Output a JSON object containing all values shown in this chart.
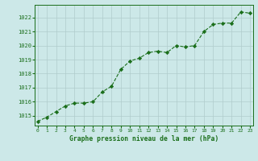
{
  "x": [
    0,
    1,
    2,
    3,
    4,
    5,
    6,
    7,
    8,
    9,
    10,
    11,
    12,
    13,
    14,
    15,
    16,
    17,
    18,
    19,
    20,
    21,
    22,
    23
  ],
  "y": [
    1014.6,
    1014.9,
    1015.3,
    1015.7,
    1015.9,
    1015.9,
    1016.0,
    1016.7,
    1017.1,
    1018.3,
    1018.9,
    1019.1,
    1019.5,
    1019.6,
    1019.5,
    1020.0,
    1019.9,
    1020.0,
    1021.0,
    1021.5,
    1021.6,
    1021.6,
    1022.4,
    1022.3
  ],
  "line_color": "#1a6e1a",
  "marker_color": "#1a6e1a",
  "bg_color": "#cce8e8",
  "grid_color": "#b0cccc",
  "xlabel": "Graphe pression niveau de la mer (hPa)",
  "ylabel_ticks": [
    1015,
    1016,
    1017,
    1018,
    1019,
    1020,
    1021,
    1022
  ],
  "ylim": [
    1014.3,
    1022.9
  ],
  "xlim": [
    -0.3,
    23.3
  ],
  "tick_color": "#1a6e1a",
  "spine_color": "#1a6e1a",
  "xlabel_color": "#1a6e1a"
}
